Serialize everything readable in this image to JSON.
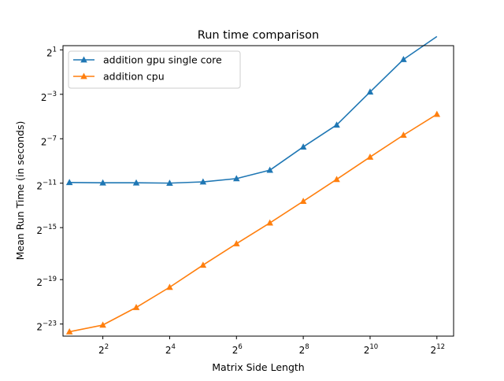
{
  "chart_data": {
    "type": "line",
    "title": "Run time comparison",
    "xlabel": "Matrix Side Length",
    "ylabel": "Mean Run Time (in seconds)",
    "x_scale": "log2",
    "y_scale": "log2",
    "xlim": [
      1.75,
      5792
    ],
    "ylim": [
      3.5e-08,
      2.6
    ],
    "x": [
      2,
      4,
      8,
      16,
      32,
      64,
      128,
      256,
      512,
      1024,
      2048,
      4096
    ],
    "x_ticks": [
      {
        "value": 4,
        "base": "2",
        "exp": "2"
      },
      {
        "value": 16,
        "base": "2",
        "exp": "4"
      },
      {
        "value": 64,
        "base": "2",
        "exp": "6"
      },
      {
        "value": 256,
        "base": "2",
        "exp": "8"
      },
      {
        "value": 1024,
        "base": "2",
        "exp": "10"
      },
      {
        "value": 4096,
        "base": "2",
        "exp": "12"
      }
    ],
    "y_ticks": [
      {
        "value": 7.45e-08,
        "base": "2",
        "exp": "−23"
      },
      {
        "value": 1.19e-06,
        "base": "2",
        "exp": "−19"
      },
      {
        "value": 3.05e-05,
        "base": "2",
        "exp": "−15"
      },
      {
        "value": 0.000488,
        "base": "2",
        "exp": "−11"
      },
      {
        "value": 0.00781,
        "base": "2",
        "exp": "−7"
      },
      {
        "value": 0.125,
        "base": "2",
        "exp": "−3"
      },
      {
        "value": 2,
        "base": "2",
        "exp": "1"
      }
    ],
    "series": [
      {
        "name": "addition gpu single core",
        "color": "#1f77b4",
        "marker": "triangle",
        "values": [
          0.00051,
          0.0005,
          0.0005,
          0.00049,
          0.00053,
          0.00065,
          0.0011,
          0.0047,
          0.0185,
          0.145,
          1.1,
          4.6
        ]
      },
      {
        "name": "addition cpu",
        "color": "#ff7f0e",
        "marker": "triangle",
        "values": [
          4.6e-08,
          7e-08,
          2.1e-07,
          7.4e-07,
          2.95e-06,
          1.12e-05,
          4.1e-05,
          0.000158,
          0.00062,
          0.0025,
          0.0098,
          0.036
        ]
      }
    ],
    "legend_position": "top-left",
    "grid": false
  }
}
